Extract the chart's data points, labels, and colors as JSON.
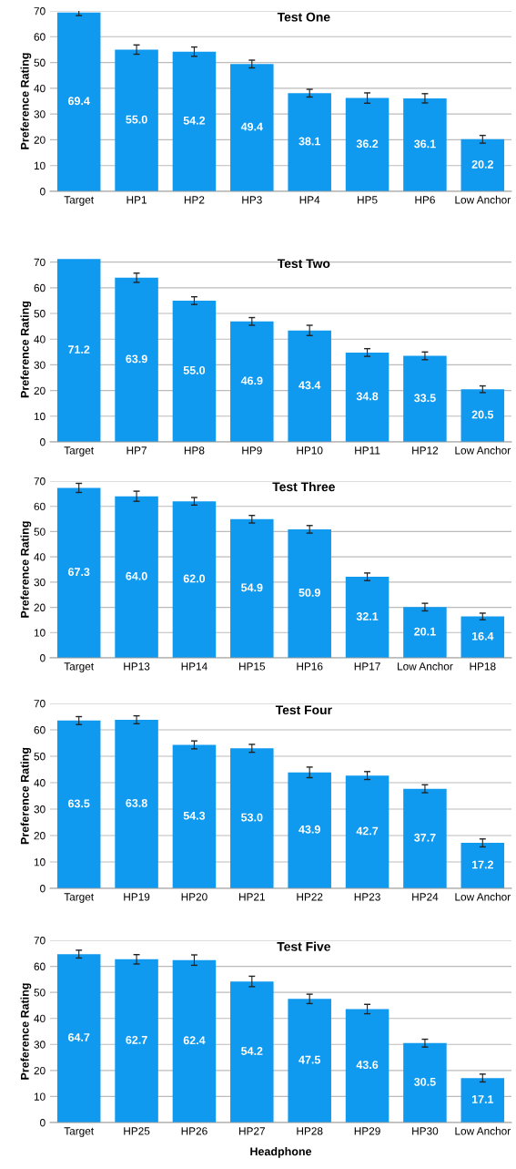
{
  "chart_data": [
    {
      "type": "bar",
      "title": "Test One",
      "ylabel": "Preference Rating",
      "categories": [
        "Target",
        "HP1",
        "HP2",
        "HP3",
        "HP4",
        "HP5",
        "HP6",
        "Low Anchor"
      ],
      "values": [
        69.4,
        55.0,
        54.2,
        49.4,
        38.1,
        36.2,
        36.1,
        20.2
      ],
      "value_labels": [
        "69.4",
        "55.0",
        "54.2",
        "49.4",
        "38.1",
        "36.2",
        "36.1",
        "20.2"
      ],
      "errors": [
        1.2,
        1.8,
        1.8,
        1.5,
        1.5,
        2,
        1.8,
        1.5
      ],
      "color": "#0f9af0",
      "ylim": [
        0,
        70
      ],
      "yticks": [
        0,
        10,
        20,
        30,
        40,
        50,
        60,
        70
      ],
      "grid": "y"
    },
    {
      "type": "bar",
      "title": "Test Two",
      "ylabel": "Preference Rating",
      "categories": [
        "Target",
        "HP7",
        "HP8",
        "HP9",
        "HP10",
        "HP11",
        "HP12",
        "Low Anchor"
      ],
      "values": [
        71.2,
        63.9,
        55.0,
        46.9,
        43.4,
        34.8,
        33.5,
        20.5
      ],
      "value_labels": [
        "71.2",
        "63.9",
        "55.0",
        "46.9",
        "43.4",
        "34.8",
        "33.5",
        "20.5"
      ],
      "errors": [
        null,
        1.8,
        1.5,
        1.5,
        2,
        1.5,
        1.5,
        1.3
      ],
      "color": "#0f9af0",
      "ylim": [
        0,
        72
      ],
      "yticks": [
        0,
        10,
        20,
        30,
        40,
        50,
        60,
        70
      ],
      "grid": "y"
    },
    {
      "type": "bar",
      "title": "Test Three",
      "ylabel": "Preference Rating",
      "categories": [
        "Target",
        "HP13",
        "HP14",
        "HP15",
        "HP16",
        "HP17",
        "Low Anchor",
        "HP18"
      ],
      "values": [
        67.3,
        64.0,
        62.0,
        54.9,
        50.9,
        32.1,
        20.1,
        16.4
      ],
      "value_labels": [
        "67.3",
        "64.0",
        "62.0",
        "54.9",
        "50.9",
        "32.1",
        "20.1",
        "16.4"
      ],
      "errors": [
        1.8,
        2,
        1.5,
        1.5,
        1.5,
        1.5,
        1.5,
        1.3
      ],
      "color": "#0f9af0",
      "ylim": [
        0,
        70
      ],
      "yticks": [
        0,
        10,
        20,
        30,
        40,
        50,
        60,
        70
      ],
      "grid": "y"
    },
    {
      "type": "bar",
      "title": "Test Four",
      "ylabel": "Preference Rating",
      "categories": [
        "Target",
        "HP19",
        "HP20",
        "HP21",
        "HP22",
        "HP23",
        "HP24",
        "Low Anchor"
      ],
      "values": [
        63.5,
        63.8,
        54.3,
        53.0,
        43.9,
        42.7,
        37.7,
        17.2
      ],
      "value_labels": [
        "63.5",
        "63.8",
        "54.3",
        "53.0",
        "43.9",
        "42.7",
        "37.7",
        "17.2"
      ],
      "errors": [
        1.5,
        1.5,
        1.5,
        1.5,
        2,
        1.5,
        1.5,
        1.5
      ],
      "color": "#0f9af0",
      "ylim": [
        0,
        70
      ],
      "yticks": [
        0,
        10,
        20,
        30,
        40,
        50,
        60,
        70
      ],
      "grid": "y"
    },
    {
      "type": "bar",
      "title": "Test Five",
      "ylabel": "Preference Rating",
      "xlabel": "Headphone",
      "categories": [
        "Target",
        "HP25",
        "HP26",
        "HP27",
        "HP28",
        "HP29",
        "HP30",
        "Low Anchor"
      ],
      "values": [
        64.7,
        62.7,
        62.4,
        54.2,
        47.5,
        43.6,
        30.5,
        17.1
      ],
      "value_labels": [
        "64.7",
        "62.7",
        "62.4",
        "54.2",
        "47.5",
        "43.6",
        "30.5",
        "17.1"
      ],
      "errors": [
        1.5,
        1.8,
        2,
        2,
        1.8,
        1.8,
        1.5,
        1.5
      ],
      "color": "#0f9af0",
      "ylim": [
        0,
        70
      ],
      "yticks": [
        0,
        10,
        20,
        30,
        40,
        50,
        60,
        70
      ],
      "grid": "y"
    }
  ]
}
